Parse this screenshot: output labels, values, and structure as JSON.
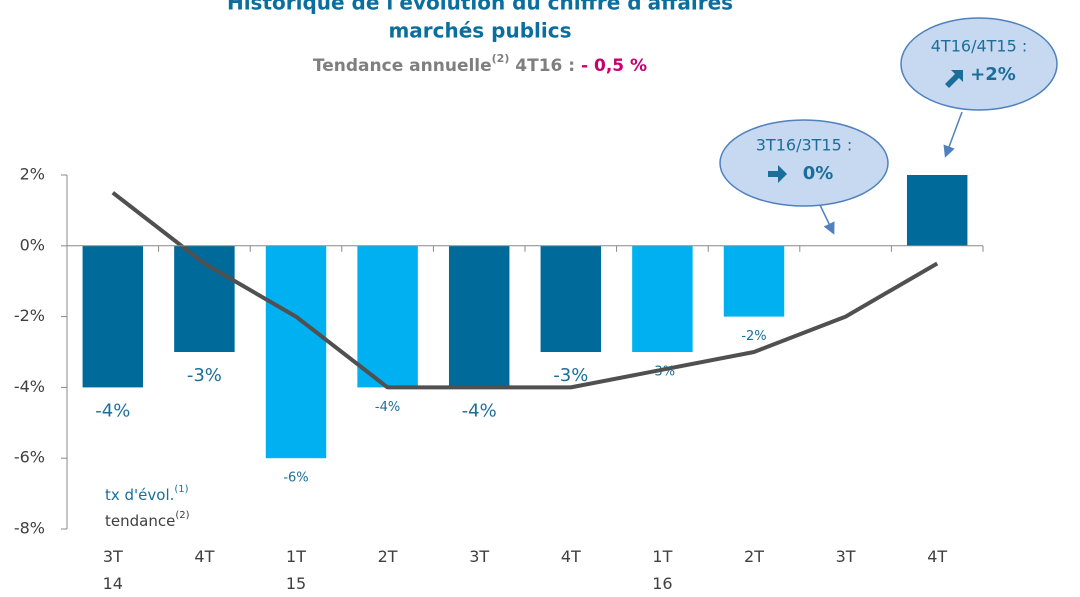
{
  "chart_data": {
    "type": "bar",
    "title": "Historique de l'évolution du chiffre d'affaires",
    "title_line2": "marchés publics",
    "subtitle": {
      "text": "Tendance annuelle",
      "sup": "(2)",
      "period": " 4T16 : ",
      "value": "- 0,5 %"
    },
    "categories": [
      "3T\n14",
      "4T",
      "1T\n15",
      "2T",
      "3T",
      "4T",
      "1T\n16",
      "2T",
      "3T",
      "4T"
    ],
    "series": [
      {
        "name": "tx d'évol.",
        "sup": "(1)",
        "type": "bar",
        "color": "#00b0f0",
        "colors": [
          "#006a9a",
          "#006a9a",
          "#00b0f0",
          "#00b0f0",
          "#006a9a",
          "#006a9a",
          "#00b0f0",
          "#00b0f0",
          "#006a9a",
          "#006a9a"
        ],
        "values": [
          -4,
          -3,
          -6,
          -4,
          -4,
          -3,
          -3,
          -2,
          0,
          2
        ],
        "value_labels": [
          "-4%",
          "-3%",
          "-6%",
          "-4%",
          "-4%",
          "-3%",
          "-3%",
          "-2%",
          null,
          null
        ]
      },
      {
        "name": "tendance",
        "sup": "(2)",
        "type": "line",
        "color": "#505050",
        "values": [
          1.5,
          -0.5,
          -2,
          -4,
          -4,
          -4,
          -3.5,
          -3,
          -2,
          -0.5
        ]
      }
    ],
    "ylim": [
      -8,
      2
    ],
    "yticks": [
      {
        "value": -8,
        "label": "-8%"
      },
      {
        "value": -6,
        "label": "-6%"
      },
      {
        "value": -4,
        "label": "-4%"
      },
      {
        "value": -2,
        "label": "-2%"
      },
      {
        "value": 0,
        "label": "0%"
      },
      {
        "value": 2,
        "label": "2%"
      }
    ],
    "annotations": [
      {
        "label": "3T16/3T15 :",
        "value": "0%",
        "target": 8
      },
      {
        "label": "4T16/4T15 :",
        "value": "+2%",
        "target": 9
      }
    ]
  }
}
